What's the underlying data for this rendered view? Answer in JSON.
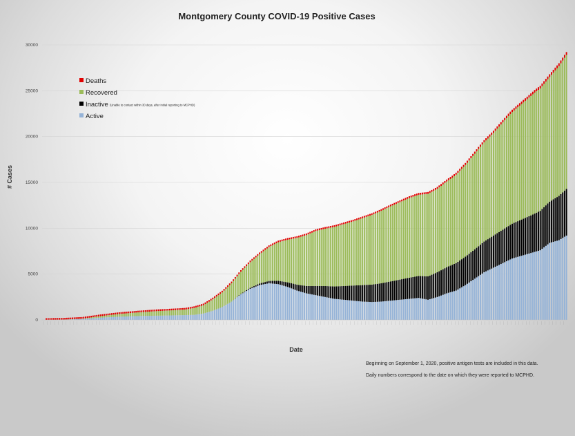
{
  "chart_data": {
    "type": "bar",
    "stacked": true,
    "title": "Montgomery County COVID-19 Positive Cases",
    "xlabel": "Date",
    "ylabel": "# Cases",
    "ylim": [
      0,
      30000
    ],
    "yticks": [
      0,
      5000,
      10000,
      15000,
      20000,
      25000,
      30000
    ],
    "grid": "horizontal",
    "legend_placement": "upper-left",
    "bar_count": 280,
    "series": [
      {
        "name": "Deaths",
        "color": "#e00000",
        "keyframes": [
          [
            0,
            0
          ],
          [
            55,
            20
          ],
          [
            80,
            50
          ],
          [
            120,
            100
          ],
          [
            160,
            150
          ],
          [
            200,
            200
          ],
          [
            230,
            230
          ],
          [
            260,
            280
          ],
          [
            279,
            320
          ]
        ]
      },
      {
        "name": "Recovered",
        "color": "#9bbb59",
        "keyframes": [
          [
            0,
            0
          ],
          [
            20,
            30
          ],
          [
            40,
            300
          ],
          [
            60,
            500
          ],
          [
            75,
            600
          ],
          [
            85,
            900
          ],
          [
            95,
            1600
          ],
          [
            105,
            2400
          ],
          [
            115,
            3200
          ],
          [
            125,
            4200
          ],
          [
            135,
            5100
          ],
          [
            145,
            6000
          ],
          [
            155,
            6500
          ],
          [
            165,
            7000
          ],
          [
            175,
            7600
          ],
          [
            185,
            8200
          ],
          [
            195,
            8700
          ],
          [
            205,
            9000
          ],
          [
            210,
            9100
          ],
          [
            218,
            9500
          ],
          [
            225,
            10000
          ],
          [
            232,
            10600
          ],
          [
            240,
            11200
          ],
          [
            248,
            12000
          ],
          [
            255,
            12600
          ],
          [
            262,
            13200
          ],
          [
            270,
            13600
          ],
          [
            279,
            14600
          ]
        ]
      },
      {
        "name": "Inactive",
        "note": "(Unable to contact within 30 days, after initial reporting to MCPHD)",
        "color": "#000000",
        "keyframes": [
          [
            0,
            0
          ],
          [
            100,
            0
          ],
          [
            110,
            100
          ],
          [
            120,
            250
          ],
          [
            130,
            500
          ],
          [
            140,
            800
          ],
          [
            150,
            1200
          ],
          [
            160,
            1500
          ],
          [
            170,
            1800
          ],
          [
            180,
            2000
          ],
          [
            190,
            2200
          ],
          [
            200,
            2400
          ],
          [
            210,
            2700
          ],
          [
            220,
            3000
          ],
          [
            230,
            3200
          ],
          [
            240,
            3500
          ],
          [
            250,
            3800
          ],
          [
            260,
            4100
          ],
          [
            270,
            4500
          ],
          [
            279,
            5100
          ]
        ]
      },
      {
        "name": "Active",
        "color": "#95b3d7",
        "keyframes": [
          [
            0,
            0
          ],
          [
            10,
            20
          ],
          [
            20,
            100
          ],
          [
            30,
            250
          ],
          [
            40,
            350
          ],
          [
            50,
            420
          ],
          [
            60,
            460
          ],
          [
            70,
            500
          ],
          [
            80,
            550
          ],
          [
            85,
            700
          ],
          [
            90,
            1000
          ],
          [
            95,
            1400
          ],
          [
            100,
            2000
          ],
          [
            105,
            2800
          ],
          [
            110,
            3400
          ],
          [
            115,
            3800
          ],
          [
            120,
            4000
          ],
          [
            125,
            3900
          ],
          [
            130,
            3600
          ],
          [
            135,
            3200
          ],
          [
            140,
            2900
          ],
          [
            145,
            2700
          ],
          [
            150,
            2500
          ],
          [
            155,
            2300
          ],
          [
            160,
            2200
          ],
          [
            165,
            2100
          ],
          [
            170,
            2000
          ],
          [
            175,
            1950
          ],
          [
            180,
            2000
          ],
          [
            185,
            2100
          ],
          [
            190,
            2200
          ],
          [
            195,
            2300
          ],
          [
            200,
            2400
          ],
          [
            205,
            2200
          ],
          [
            210,
            2500
          ],
          [
            215,
            2900
          ],
          [
            220,
            3200
          ],
          [
            225,
            3800
          ],
          [
            230,
            4500
          ],
          [
            235,
            5200
          ],
          [
            240,
            5700
          ],
          [
            245,
            6200
          ],
          [
            250,
            6700
          ],
          [
            255,
            7000
          ],
          [
            260,
            7300
          ],
          [
            265,
            7600
          ],
          [
            270,
            8400
          ],
          [
            275,
            8700
          ],
          [
            279,
            9200
          ]
        ]
      }
    ]
  },
  "legend": {
    "items": [
      {
        "label": "Deaths",
        "color": "#e00000"
      },
      {
        "label": "Recovered",
        "color": "#9bbb59"
      },
      {
        "label": "Inactive",
        "color": "#000000",
        "note": "(Unable to contact within 30 days, after initial reporting to MCPHD)"
      },
      {
        "label": "Active",
        "color": "#95b3d7"
      }
    ]
  },
  "notes": [
    "Beginning on September 1, 2020, positive antigen tests are included in this data.",
    "Daily numbers correspond to the date on which they were reported to MCPHD."
  ]
}
